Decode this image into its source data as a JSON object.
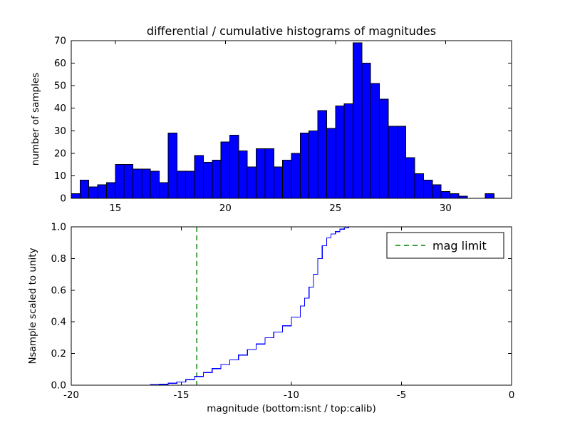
{
  "figure": {
    "background": "#ffffff"
  },
  "chart_data": [
    {
      "type": "bar",
      "role": "differential-histogram",
      "title": "differential / cumulative histograms of magnitudes",
      "xlabel": "",
      "ylabel": "number of samples",
      "xlim": [
        13,
        33
      ],
      "ylim": [
        0,
        70
      ],
      "xticks": [
        15,
        20,
        25,
        30
      ],
      "xticklabels": [
        "15",
        "20",
        "25",
        "30"
      ],
      "yticks": [
        0,
        10,
        20,
        30,
        40,
        50,
        60,
        70
      ],
      "yticklabels": [
        "0",
        "10",
        "20",
        "30",
        "40",
        "50",
        "60",
        "70"
      ],
      "grid": false,
      "bar_fill": "#0000ff",
      "bar_edge": "#000000",
      "bin_start": 13.0,
      "bin_width": 0.4,
      "values": [
        2,
        8,
        5,
        6,
        7,
        15,
        15,
        13,
        13,
        12,
        7,
        29,
        12,
        12,
        19,
        16,
        17,
        25,
        28,
        21,
        14,
        22,
        22,
        14,
        17,
        20,
        29,
        30,
        39,
        31,
        41,
        42,
        69,
        60,
        51,
        44,
        32,
        32,
        18,
        11,
        8,
        6,
        3,
        2,
        1,
        0,
        0,
        2
      ]
    },
    {
      "type": "line",
      "role": "cumulative-histogram",
      "xlabel": "magnitude (bottom:isnt / top:calib)",
      "ylabel": "Nsample scaled to unity",
      "xlim": [
        -20,
        0
      ],
      "ylim": [
        0,
        1
      ],
      "xticks": [
        -20,
        -15,
        -10,
        -5,
        0
      ],
      "xticklabels": [
        "-20",
        "-15",
        "-10",
        "-5",
        "0"
      ],
      "yticks": [
        0,
        0.2,
        0.4,
        0.6,
        0.8,
        1.0
      ],
      "yticklabels": [
        "0.0",
        "0.2",
        "0.4",
        "0.6",
        "0.8",
        "1.0"
      ],
      "grid": false,
      "line_color": "#0000ff",
      "steps": [
        [
          -20,
          0
        ],
        [
          -16.4,
          0.003
        ],
        [
          -16.0,
          0.006
        ],
        [
          -15.6,
          0.012
        ],
        [
          -15.2,
          0.02
        ],
        [
          -14.8,
          0.035
        ],
        [
          -14.4,
          0.055
        ],
        [
          -14.0,
          0.08
        ],
        [
          -13.6,
          0.105
        ],
        [
          -13.2,
          0.13
        ],
        [
          -12.8,
          0.16
        ],
        [
          -12.4,
          0.19
        ],
        [
          -12.0,
          0.225
        ],
        [
          -11.6,
          0.26
        ],
        [
          -11.2,
          0.3
        ],
        [
          -10.8,
          0.335
        ],
        [
          -10.4,
          0.375
        ],
        [
          -10.0,
          0.43
        ],
        [
          -9.6,
          0.5
        ],
        [
          -9.4,
          0.55
        ],
        [
          -9.2,
          0.62
        ],
        [
          -9.0,
          0.7
        ],
        [
          -8.8,
          0.8
        ],
        [
          -8.6,
          0.88
        ],
        [
          -8.4,
          0.93
        ],
        [
          -8.2,
          0.955
        ],
        [
          -8.0,
          0.97
        ],
        [
          -7.8,
          0.985
        ],
        [
          -7.6,
          0.993
        ],
        [
          -7.4,
          1.0
        ],
        [
          0,
          1.0
        ]
      ],
      "vline": {
        "x": -14.3,
        "color": "#008000",
        "style": "dashed",
        "label": "mag limit"
      },
      "legend": {
        "position": "upper right",
        "label": "mag limit",
        "line_color": "#008000",
        "line_style": "dashed"
      }
    }
  ]
}
